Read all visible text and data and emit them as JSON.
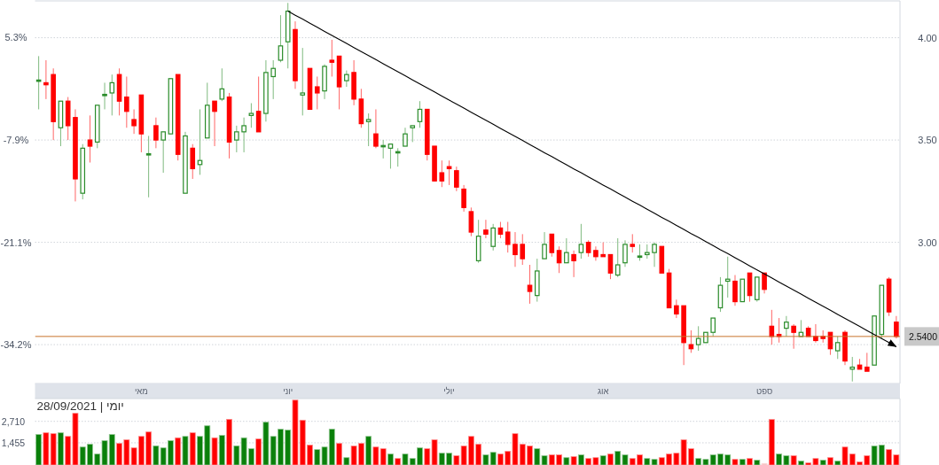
{
  "chart_data": [
    {
      "type": "candlestick",
      "categories": [
        null,
        null,
        null,
        null,
        null,
        null,
        null,
        null,
        null,
        null,
        null,
        null,
        null,
        null,
        "מאי",
        null,
        null,
        null,
        null,
        null,
        null,
        null,
        null,
        null,
        null,
        null,
        null,
        null,
        null,
        null,
        null,
        null,
        null,
        null,
        "יוני",
        null,
        null,
        null,
        null,
        null,
        null,
        null,
        null,
        null,
        null,
        null,
        null,
        null,
        null,
        null,
        null,
        null,
        null,
        null,
        null,
        null,
        "יולי",
        null,
        null,
        null,
        null,
        null,
        null,
        null,
        null,
        null,
        null,
        null,
        null,
        null,
        null,
        null,
        null,
        null,
        null,
        null,
        null,
        "אוג",
        null,
        null,
        null,
        null,
        null,
        null,
        null,
        null,
        null,
        null,
        null,
        null,
        null,
        null,
        null,
        null,
        null,
        null,
        null,
        null,
        null,
        "ספט",
        null,
        null,
        null,
        null,
        null,
        null,
        null,
        null,
        null,
        null,
        null,
        null,
        null,
        null,
        null,
        null,
        null,
        null
      ],
      "ohlc": [
        [
          3.79,
          3.91,
          3.65,
          3.79
        ],
        [
          3.78,
          3.89,
          3.7,
          3.77
        ],
        [
          3.82,
          3.85,
          3.5,
          3.59
        ],
        [
          3.56,
          3.69,
          3.47,
          3.69
        ],
        [
          3.69,
          3.71,
          3.5,
          3.57
        ],
        [
          3.61,
          3.65,
          3.2,
          3.31
        ],
        [
          3.24,
          3.48,
          3.21,
          3.46
        ],
        [
          3.5,
          3.62,
          3.39,
          3.47
        ],
        [
          3.49,
          3.67,
          3.46,
          3.67
        ],
        [
          3.72,
          3.78,
          3.65,
          3.72
        ],
        [
          3.73,
          3.82,
          3.62,
          3.78
        ],
        [
          3.82,
          3.85,
          3.62,
          3.69
        ],
        [
          3.71,
          3.81,
          3.56,
          3.64
        ],
        [
          3.6,
          3.65,
          3.53,
          3.57
        ],
        [
          3.72,
          3.72,
          3.44,
          3.53
        ],
        [
          3.43,
          3.52,
          3.22,
          3.43
        ],
        [
          3.57,
          3.61,
          3.46,
          3.5
        ],
        [
          3.5,
          3.54,
          3.34,
          3.54
        ],
        [
          3.53,
          3.8,
          3.53,
          3.8
        ],
        [
          3.82,
          3.82,
          3.4,
          3.43
        ],
        [
          3.24,
          3.54,
          3.24,
          3.52
        ],
        [
          3.46,
          3.48,
          3.31,
          3.36
        ],
        [
          3.38,
          3.65,
          3.33,
          3.4
        ],
        [
          3.51,
          3.78,
          3.51,
          3.67
        ],
        [
          3.69,
          3.69,
          3.47,
          3.64
        ],
        [
          3.7,
          3.85,
          3.69,
          3.75
        ],
        [
          3.71,
          3.73,
          3.41,
          3.49
        ],
        [
          3.5,
          3.57,
          3.44,
          3.54
        ],
        [
          3.54,
          3.61,
          3.44,
          3.57
        ],
        [
          3.62,
          3.68,
          3.56,
          3.63
        ],
        [
          3.64,
          3.81,
          3.54,
          3.54
        ],
        [
          3.63,
          3.89,
          3.59,
          3.83
        ],
        [
          3.81,
          3.89,
          3.7,
          3.85
        ],
        [
          3.89,
          4.11,
          3.88,
          3.96
        ],
        [
          3.98,
          4.17,
          3.85,
          4.13
        ],
        [
          4.04,
          4.08,
          3.75,
          3.79
        ],
        [
          3.72,
          3.95,
          3.62,
          3.73
        ],
        [
          3.85,
          3.85,
          3.65,
          3.65
        ],
        [
          3.76,
          3.81,
          3.65,
          3.73
        ],
        [
          3.74,
          3.87,
          3.7,
          3.86
        ],
        [
          3.89,
          3.99,
          3.81,
          3.88
        ],
        [
          3.91,
          3.91,
          3.65,
          3.76
        ],
        [
          3.79,
          3.84,
          3.76,
          3.82
        ],
        [
          3.83,
          3.89,
          3.67,
          3.7
        ],
        [
          3.7,
          3.75,
          3.56,
          3.58
        ],
        [
          3.59,
          3.63,
          3.47,
          3.6
        ],
        [
          3.53,
          3.65,
          3.46,
          3.47
        ],
        [
          3.47,
          3.5,
          3.41,
          3.47
        ],
        [
          3.46,
          3.48,
          3.36,
          3.48
        ],
        [
          3.44,
          3.46,
          3.37,
          3.44
        ],
        [
          3.47,
          3.56,
          3.47,
          3.53
        ],
        [
          3.56,
          3.57,
          3.49,
          3.57
        ],
        [
          3.59,
          3.69,
          3.56,
          3.65
        ],
        [
          3.65,
          3.65,
          3.4,
          3.43
        ],
        [
          3.47,
          3.47,
          3.3,
          3.3
        ],
        [
          3.34,
          3.4,
          3.27,
          3.3
        ],
        [
          3.37,
          3.4,
          3.28,
          3.36
        ],
        [
          3.35,
          3.37,
          3.25,
          3.27
        ],
        [
          3.26,
          3.28,
          3.15,
          3.17
        ],
        [
          3.15,
          3.17,
          3.03,
          3.05
        ],
        [
          2.91,
          3.11,
          2.9,
          3.03
        ],
        [
          3.06,
          3.11,
          3.02,
          3.04
        ],
        [
          2.98,
          3.09,
          2.96,
          3.07
        ],
        [
          3.07,
          3.1,
          3.02,
          3.04
        ],
        [
          3.05,
          3.1,
          2.95,
          2.99
        ],
        [
          2.99,
          3.05,
          2.88,
          2.94
        ],
        [
          2.99,
          3.04,
          2.89,
          2.92
        ],
        [
          2.79,
          2.89,
          2.7,
          2.76
        ],
        [
          2.74,
          2.92,
          2.71,
          2.86
        ],
        [
          2.92,
          3.05,
          2.92,
          2.99
        ],
        [
          3.04,
          3.04,
          2.93,
          2.95
        ],
        [
          2.96,
          2.98,
          2.85,
          2.9
        ],
        [
          2.9,
          3.02,
          2.9,
          2.95
        ],
        [
          2.94,
          2.96,
          2.83,
          2.91
        ],
        [
          2.95,
          3.09,
          2.92,
          2.99
        ],
        [
          3.0,
          3.01,
          2.93,
          2.95
        ],
        [
          2.96,
          2.98,
          2.91,
          2.93
        ],
        [
          2.94,
          3.0,
          2.93,
          2.93
        ],
        [
          2.94,
          2.94,
          2.82,
          2.85
        ],
        [
          2.84,
          3.02,
          2.83,
          2.89
        ],
        [
          2.9,
          3.01,
          2.88,
          2.99
        ],
        [
          2.99,
          3.04,
          2.95,
          2.98
        ],
        [
          2.93,
          2.99,
          2.91,
          2.93
        ],
        [
          2.94,
          2.99,
          2.92,
          2.95
        ],
        [
          2.95,
          3.0,
          2.88,
          2.99
        ],
        [
          2.98,
          2.98,
          2.85,
          2.85
        ],
        [
          2.85,
          2.87,
          2.68,
          2.68
        ],
        [
          2.69,
          2.72,
          2.63,
          2.65
        ],
        [
          2.69,
          2.69,
          2.4,
          2.51
        ],
        [
          2.5,
          2.57,
          2.46,
          2.48
        ],
        [
          2.5,
          2.59,
          2.47,
          2.53
        ],
        [
          2.51,
          2.56,
          2.51,
          2.56
        ],
        [
          2.56,
          2.63,
          2.54,
          2.63
        ],
        [
          2.68,
          2.83,
          2.66,
          2.79
        ],
        [
          2.81,
          2.93,
          2.73,
          2.82
        ],
        [
          2.81,
          2.84,
          2.69,
          2.71
        ],
        [
          2.71,
          2.82,
          2.71,
          2.82
        ],
        [
          2.85,
          2.85,
          2.71,
          2.74
        ],
        [
          2.72,
          2.83,
          2.71,
          2.83
        ],
        [
          2.85,
          2.85,
          2.75,
          2.77
        ],
        [
          2.59,
          2.67,
          2.5,
          2.54
        ],
        [
          2.55,
          2.63,
          2.51,
          2.54
        ],
        [
          2.58,
          2.64,
          2.54,
          2.61
        ],
        [
          2.59,
          2.6,
          2.48,
          2.56
        ],
        [
          2.54,
          2.62,
          2.54,
          2.56
        ],
        [
          2.58,
          2.59,
          2.54,
          2.54
        ],
        [
          2.54,
          2.6,
          2.51,
          2.52
        ],
        [
          2.54,
          2.57,
          2.51,
          2.53
        ],
        [
          2.56,
          2.56,
          2.45,
          2.48
        ],
        [
          2.47,
          2.54,
          2.43,
          2.51
        ],
        [
          2.56,
          2.57,
          2.4,
          2.42
        ],
        [
          2.38,
          2.44,
          2.32,
          2.39
        ],
        [
          2.4,
          2.43,
          2.38,
          2.38
        ],
        [
          2.39,
          2.46,
          2.37,
          2.37
        ],
        [
          2.4,
          2.64,
          2.4,
          2.64
        ],
        [
          2.55,
          2.79,
          2.53,
          2.79
        ],
        [
          2.82,
          2.83,
          2.64,
          2.66
        ],
        [
          2.61,
          2.64,
          2.53,
          2.54
        ]
      ],
      "colors": [
        "#2a8c2a",
        "#ff0000",
        "#ff0000",
        "#2a8c2a",
        "#ff0000",
        "#ff0000",
        "#2a8c2a",
        "#ff0000",
        "#2a8c2a",
        "#2a8c2a",
        "#2a8c2a",
        "#ff0000",
        "#ff0000",
        "#ff0000",
        "#ff0000",
        "#2a8c2a",
        "#ff0000",
        "#2a8c2a",
        "#2a8c2a",
        "#ff0000",
        "#2a8c2a",
        "#ff0000",
        "#2a8c2a",
        "#2a8c2a",
        "#ff0000",
        "#2a8c2a",
        "#ff0000",
        "#2a8c2a",
        "#2a8c2a",
        "#2a8c2a",
        "#ff0000",
        "#2a8c2a",
        "#2a8c2a",
        "#2a8c2a",
        "#2a8c2a",
        "#ff0000",
        "#2a8c2a",
        "#ff0000",
        "#ff0000",
        "#2a8c2a",
        "#ff0000",
        "#ff0000",
        "#2a8c2a",
        "#ff0000",
        "#ff0000",
        "#2a8c2a",
        "#ff0000",
        "#2a8c2a",
        "#2a8c2a",
        "#2a8c2a",
        "#2a8c2a",
        "#2a8c2a",
        "#2a8c2a",
        "#ff0000",
        "#ff0000",
        "#ff0000",
        "#ff0000",
        "#ff0000",
        "#ff0000",
        "#ff0000",
        "#2a8c2a",
        "#ff0000",
        "#2a8c2a",
        "#ff0000",
        "#ff0000",
        "#ff0000",
        "#ff0000",
        "#ff0000",
        "#2a8c2a",
        "#2a8c2a",
        "#ff0000",
        "#ff0000",
        "#2a8c2a",
        "#ff0000",
        "#2a8c2a",
        "#ff0000",
        "#ff0000",
        "#ff0000",
        "#ff0000",
        "#2a8c2a",
        "#2a8c2a",
        "#ff0000",
        "#2a8c2a",
        "#2a8c2a",
        "#2a8c2a",
        "#ff0000",
        "#ff0000",
        "#ff0000",
        "#ff0000",
        "#ff0000",
        "#2a8c2a",
        "#2a8c2a",
        "#2a8c2a",
        "#2a8c2a",
        "#2a8c2a",
        "#ff0000",
        "#2a8c2a",
        "#ff0000",
        "#2a8c2a",
        "#ff0000",
        "#ff0000",
        "#ff0000",
        "#2a8c2a",
        "#ff0000",
        "#2a8c2a",
        "#ff0000",
        "#ff0000",
        "#ff0000",
        "#ff0000",
        "#2a8c2a",
        "#ff0000",
        "#2a8c2a",
        "#ff0000",
        "#ff0000",
        "#2a8c2a",
        "#2a8c2a",
        "#ff0000",
        "#ff0000"
      ],
      "ylim": [
        2.31,
        4.18
      ],
      "yticks": [
        {
          "value": 2.5,
          "label": null
        },
        {
          "value": 3,
          "label": "3.00"
        },
        {
          "value": 3.5,
          "label": "3.50"
        },
        {
          "value": 4,
          "label": "4.00"
        }
      ],
      "y2lim": [
        -39.2,
        10.0
      ],
      "y2ticks": [
        {
          "value": -34.2,
          "label": "-34.2%"
        },
        {
          "value": -21.1,
          "label": "-21.1%"
        },
        {
          "value": -7.9,
          "label": "-7.9%"
        },
        {
          "value": 5.3,
          "label": "5.3%"
        }
      ],
      "grid": "y",
      "ref_lines": [
        {
          "axis": "y",
          "value": 2.54,
          "label": "2.5400",
          "color": "#c8742c"
        }
      ],
      "series": [
        {
          "type": "line",
          "color": "#000000",
          "values": [
            null,
            null,
            null,
            null,
            null,
            null,
            null,
            null,
            null,
            null,
            null,
            null,
            null,
            null,
            null,
            null,
            null,
            null,
            null,
            null,
            null,
            null,
            null,
            null,
            null,
            null,
            null,
            null,
            null,
            null,
            null,
            null,
            null,
            null,
            4.13,
            4.11,
            4.091,
            4.071,
            4.051,
            4.031,
            4.011,
            3.992,
            3.972,
            3.952,
            3.932,
            3.913,
            3.893,
            3.873,
            3.853,
            3.834,
            3.814,
            3.794,
            3.774,
            3.755,
            3.735,
            3.715,
            3.695,
            3.676,
            3.656,
            3.636,
            3.616,
            3.597,
            3.577,
            3.557,
            3.537,
            3.518,
            3.498,
            3.478,
            3.458,
            3.438,
            3.419,
            3.399,
            3.379,
            3.359,
            3.34,
            3.32,
            3.3,
            3.28,
            3.261,
            3.241,
            3.221,
            3.201,
            3.182,
            3.162,
            3.142,
            3.122,
            3.103,
            3.083,
            3.063,
            3.043,
            3.024,
            3.004,
            2.984,
            2.964,
            2.945,
            2.925,
            2.905,
            2.885,
            2.865,
            2.846,
            2.826,
            2.806,
            2.786,
            2.767,
            2.747,
            2.727,
            2.707,
            2.688,
            2.668,
            2.648,
            2.628,
            2.609,
            2.589,
            2.569,
            2.549,
            2.53,
            2.51,
            2.49
          ]
        }
      ]
    },
    {
      "type": "bar",
      "title": "28/09/2021 | יומי",
      "categories": [
        null,
        null,
        null,
        null,
        null,
        null,
        null,
        null,
        null,
        null,
        null,
        null,
        null,
        null,
        null,
        null,
        null,
        null,
        null,
        null,
        null,
        null,
        null,
        null,
        null,
        null,
        null,
        null,
        null,
        null,
        null,
        null,
        null,
        null,
        null,
        null,
        null,
        null,
        null,
        null,
        null,
        null,
        null,
        null,
        null,
        null,
        null,
        null,
        null,
        null,
        null,
        null,
        null,
        null,
        null,
        null,
        null,
        null,
        null,
        null,
        null,
        null,
        null,
        null,
        null,
        null,
        null,
        null,
        null,
        null,
        null,
        null,
        null,
        null,
        null,
        null,
        null,
        null,
        null,
        null,
        null,
        null,
        null,
        null,
        null,
        null,
        null,
        null,
        null,
        null,
        null,
        null,
        null,
        null,
        null,
        null,
        null,
        null,
        null,
        null,
        null,
        null,
        null,
        null,
        null,
        null,
        null,
        null,
        null,
        null,
        null,
        null,
        null,
        null,
        null,
        null,
        null,
        null
      ],
      "values": [
        1940,
        2040,
        1990,
        2040,
        1830,
        3180,
        1210,
        1370,
        800,
        1580,
        1940,
        1420,
        1630,
        1160,
        1830,
        2090,
        1280,
        1160,
        1580,
        1750,
        1830,
        2040,
        1830,
        2450,
        1750,
        1890,
        2830,
        1280,
        1750,
        1110,
        1680,
        2660,
        1830,
        2250,
        2200,
        3950,
        2780,
        1320,
        1060,
        1210,
        2260,
        1420,
        590,
        1270,
        1420,
        1830,
        1210,
        1110,
        800,
        540,
        800,
        540,
        1160,
        1110,
        1630,
        850,
        850,
        700,
        1270,
        1830,
        1370,
        750,
        900,
        800,
        960,
        1990,
        1370,
        1270,
        1110,
        700,
        750,
        750,
        590,
        650,
        750,
        540,
        590,
        700,
        800,
        960,
        750,
        540,
        750,
        540,
        490,
        590,
        800,
        850,
        1630,
        1110,
        540,
        490,
        750,
        800,
        750,
        490,
        490,
        540,
        440,
        250,
        2820,
        800,
        700,
        700,
        390,
        280,
        540,
        440,
        590,
        390,
        1210,
        800,
        340,
        700,
        1270,
        1320,
        1060,
        750
      ],
      "colors": [
        "#0a800a",
        "#ff0000",
        "#ff0000",
        "#0a800a",
        "#ff0000",
        "#ff0000",
        "#0a800a",
        "#0a800a",
        "#0a800a",
        "#0a800a",
        "#0a800a",
        "#ff0000",
        "#ff0000",
        "#ff0000",
        "#ff0000",
        "#ff0000",
        "#0a800a",
        "#0a800a",
        "#0a800a",
        "#ff0000",
        "#0a800a",
        "#ff0000",
        "#0a800a",
        "#0a800a",
        "#ff0000",
        "#0a800a",
        "#ff0000",
        "#0a800a",
        "#0a800a",
        "#0a800a",
        "#ff0000",
        "#0a800a",
        "#0a800a",
        "#0a800a",
        "#0a800a",
        "#ff0000",
        "#ff0000",
        "#ff0000",
        "#0a800a",
        "#0a800a",
        "#0a800a",
        "#ff0000",
        "#0a800a",
        "#ff0000",
        "#ff0000",
        "#0a800a",
        "#ff0000",
        "#ff0000",
        "#0a800a",
        "#ff0000",
        "#0a800a",
        "#0a800a",
        "#0a800a",
        "#ff0000",
        "#ff0000",
        "#0a800a",
        "#0a800a",
        "#ff0000",
        "#ff0000",
        "#ff0000",
        "#ff0000",
        "#0a800a",
        "#0a800a",
        "#ff0000",
        "#ff0000",
        "#ff0000",
        "#ff0000",
        "#ff0000",
        "#0a800a",
        "#0a800a",
        "#ff0000",
        "#ff0000",
        "#0a800a",
        "#ff0000",
        "#0a800a",
        "#ff0000",
        "#ff0000",
        "#0a800a",
        "#ff0000",
        "#0a800a",
        "#0a800a",
        "#ff0000",
        "#ff0000",
        "#0a800a",
        "#0a800a",
        "#ff0000",
        "#ff0000",
        "#ff0000",
        "#ff0000",
        "#ff0000",
        "#0a800a",
        "#0a800a",
        "#0a800a",
        "#0a800a",
        "#0a800a",
        "#ff0000",
        "#0a800a",
        "#ff0000",
        "#0a800a",
        "#f6b4b4",
        "#ff0000",
        "#0a800a",
        "#0a800a",
        "#ff0000",
        "#0a800a",
        "#ff0000",
        "#ff0000",
        "#0a800a",
        "#ff0000",
        "#0a800a",
        "#ff0000",
        "#ff0000",
        "#ff0000",
        "#ff0000",
        "#0a800a",
        "#0a800a",
        "#ff0000",
        "#ff0000"
      ],
      "ylim": [
        160,
        4040
      ],
      "yticks": [
        {
          "value": 1455,
          "label": "1,455"
        },
        {
          "value": 2710,
          "label": "2,710"
        }
      ],
      "grid": "y"
    }
  ]
}
